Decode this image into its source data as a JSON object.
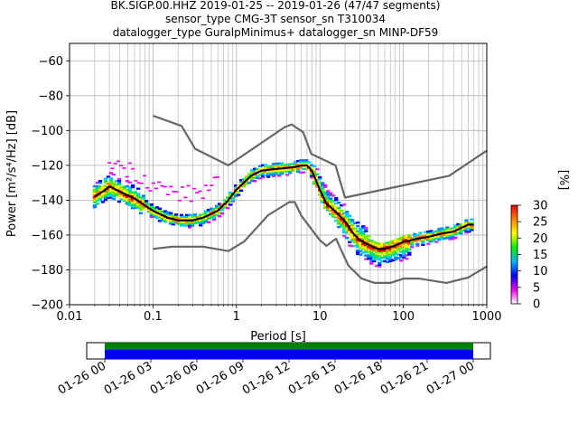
{
  "title_lines": [
    "BK.SIGP.00.HHZ   2019-01-25 -- 2019-01-26  (47/47 segments)",
    "sensor_type CMG-3T sensor_sn T310034",
    "datalogger_type GuralpMinimus+ datalogger_sn MINP-DF59"
  ],
  "colorbar": {
    "label": "[%]",
    "ticks": [
      0,
      5,
      10,
      15,
      20,
      25,
      30
    ],
    "colormap": [
      "#ffffff",
      "#ee00ee",
      "#0000ff",
      "#00b4ff",
      "#00ee00",
      "#ffff00",
      "#ff8000",
      "#ee0000"
    ]
  },
  "chart_data": {
    "type": "line",
    "title": "BK.SIGP.00.HHZ   2019-01-25 -- 2019-01-26  (47/47 segments)",
    "xlabel": "Period [s]",
    "ylabel": "Power [m²/s⁴/Hz] [dB]",
    "xscale": "log",
    "xlim": [
      0.01,
      1000
    ],
    "ylim": [
      -200,
      -50
    ],
    "xticks": [
      0.01,
      0.1,
      1,
      10,
      100,
      1000
    ],
    "xtick_labels": [
      "0.01",
      "0.1",
      "1",
      "10",
      "100",
      "1000"
    ],
    "yticks": [
      -200,
      -180,
      -160,
      -140,
      -120,
      -100,
      -80,
      -60
    ],
    "grid": true,
    "series": [
      {
        "role": "new-high-noise-model",
        "color": "#666666",
        "x": [
          0.1,
          0.22,
          0.32,
          0.8,
          3.8,
          4.6,
          6.3,
          7.9,
          15.4,
          20,
          354.8,
          1000
        ],
        "y": [
          -91.5,
          -97.4,
          -110.5,
          -120,
          -98,
          -96.5,
          -101,
          -113.5,
          -120,
          -138.5,
          -126,
          -111.5
        ]
      },
      {
        "role": "new-low-noise-model",
        "color": "#666666",
        "x": [
          0.1,
          0.17,
          0.4,
          0.8,
          1.24,
          2.4,
          4.3,
          5,
          6,
          10,
          12,
          15.6,
          21.9,
          31.6,
          45,
          70,
          101,
          154,
          328,
          600,
          1000
        ],
        "y": [
          -168,
          -166.7,
          -166.7,
          -169.2,
          -163.7,
          -148.6,
          -141.1,
          -141.1,
          -149,
          -163,
          -166.2,
          -162.1,
          -177.5,
          -185,
          -187.5,
          -187.5,
          -185,
          -185,
          -187.5,
          -184.4,
          -178
        ]
      },
      {
        "role": "mean-psd",
        "color": "#000000",
        "x": [
          0.02,
          0.025,
          0.03,
          0.04,
          0.06,
          0.08,
          0.1,
          0.15,
          0.2,
          0.3,
          0.4,
          0.6,
          0.8,
          1,
          1.5,
          2,
          3,
          4,
          5,
          6,
          7,
          8,
          10,
          12,
          15,
          20,
          25,
          30,
          40,
          50,
          60,
          80,
          100,
          150,
          200,
          300,
          400,
          600,
          700
        ],
        "y": [
          -138,
          -135,
          -132,
          -135,
          -139,
          -143,
          -146,
          -150,
          -151.5,
          -151.5,
          -150,
          -146,
          -140,
          -134,
          -126,
          -123,
          -122,
          -121.5,
          -121,
          -120,
          -120,
          -123,
          -134,
          -142,
          -146,
          -152,
          -159,
          -163,
          -166,
          -168,
          -168,
          -166,
          -164,
          -162,
          -161,
          -159,
          -158,
          -154,
          -154
        ]
      }
    ],
    "time_axis": {
      "tick_labels": [
        "01-26 00",
        "01-26 03",
        "01-26 06",
        "01-26 09",
        "01-26 12",
        "01-26 15",
        "01-26 18",
        "01-26 21",
        "01-27 00"
      ],
      "data_coverage_color": "#0000ee",
      "gap_coverage_color": "#008000"
    }
  }
}
